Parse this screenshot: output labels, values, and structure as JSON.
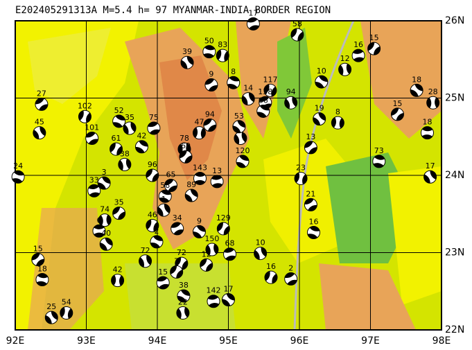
{
  "title": "E202405291313A M=5.4 h= 97 MYANMAR-INDIA BORDER REGION",
  "map": {
    "xlim": [
      92,
      98
    ],
    "ylim": [
      22,
      26
    ],
    "xticks": [
      {
        "value": 92,
        "label": "92E"
      },
      {
        "value": 93,
        "label": "93E"
      },
      {
        "value": 94,
        "label": "94E"
      },
      {
        "value": 95,
        "label": "95E"
      },
      {
        "value": 96,
        "label": "96E"
      },
      {
        "value": 97,
        "label": "97E"
      },
      {
        "value": 98,
        "label": "98E"
      }
    ],
    "yticks": [
      {
        "value": 22,
        "label": "22N"
      },
      {
        "value": 23,
        "label": "23N"
      },
      {
        "value": 24,
        "label": "24N"
      },
      {
        "value": 25,
        "label": "25N"
      },
      {
        "value": 26,
        "label": "26N"
      }
    ],
    "events": [
      {
        "lon": 92.37,
        "lat": 24.92,
        "depth": 27
      },
      {
        "lon": 92.04,
        "lat": 23.98,
        "depth": 24
      },
      {
        "lon": 92.34,
        "lat": 24.55,
        "depth": 45
      },
      {
        "lon": 92.98,
        "lat": 24.76,
        "depth": 102
      },
      {
        "lon": 93.08,
        "lat": 24.48,
        "depth": 101
      },
      {
        "lon": 93.46,
        "lat": 24.7,
        "depth": 52
      },
      {
        "lon": 93.61,
        "lat": 24.61,
        "depth": 35
      },
      {
        "lon": 93.42,
        "lat": 24.34,
        "depth": 61
      },
      {
        "lon": 93.95,
        "lat": 24.61,
        "depth": 75
      },
      {
        "lon": 93.78,
        "lat": 24.37,
        "depth": 42
      },
      {
        "lon": 93.54,
        "lat": 24.14,
        "depth": 38
      },
      {
        "lon": 93.93,
        "lat": 24.0,
        "depth": 96
      },
      {
        "lon": 93.11,
        "lat": 23.8,
        "depth": 33
      },
      {
        "lon": 93.25,
        "lat": 23.9,
        "depth": 3
      },
      {
        "lon": 93.26,
        "lat": 23.42,
        "depth": 74
      },
      {
        "lon": 93.46,
        "lat": 23.51,
        "depth": 35
      },
      {
        "lon": 93.18,
        "lat": 23.28,
        "depth": 6
      },
      {
        "lon": 93.28,
        "lat": 23.11,
        "depth": 40
      },
      {
        "lon": 93.44,
        "lat": 22.64,
        "depth": 42
      },
      {
        "lon": 92.32,
        "lat": 22.91,
        "depth": 15
      },
      {
        "lon": 92.38,
        "lat": 22.65,
        "depth": 18
      },
      {
        "lon": 92.51,
        "lat": 22.16,
        "depth": 25
      },
      {
        "lon": 92.72,
        "lat": 22.22,
        "depth": 54
      },
      {
        "lon": 94.19,
        "lat": 23.87,
        "depth": 65
      },
      {
        "lon": 94.11,
        "lat": 23.73,
        "depth": 58
      },
      {
        "lon": 94.09,
        "lat": 23.55,
        "depth": 1
      },
      {
        "lon": 93.93,
        "lat": 23.35,
        "depth": 46
      },
      {
        "lon": 94.28,
        "lat": 23.31,
        "depth": 34
      },
      {
        "lon": 93.99,
        "lat": 23.14,
        "depth": 2
      },
      {
        "lon": 93.83,
        "lat": 22.89,
        "depth": 72
      },
      {
        "lon": 94.34,
        "lat": 22.86,
        "depth": 72
      },
      {
        "lon": 94.08,
        "lat": 22.61,
        "depth": 15
      },
      {
        "lon": 94.37,
        "lat": 22.44,
        "depth": 38
      },
      {
        "lon": 94.36,
        "lat": 22.22,
        "depth": 22
      },
      {
        "lon": 94.27,
        "lat": 22.75,
        "depth": 7
      },
      {
        "lon": 94.79,
        "lat": 22.37,
        "depth": 142
      },
      {
        "lon": 95.0,
        "lat": 22.39,
        "depth": 17
      },
      {
        "lon": 94.38,
        "lat": 24.34,
        "depth": 78
      },
      {
        "lon": 94.4,
        "lat": 24.24,
        "depth": 69
      },
      {
        "lon": 94.6,
        "lat": 23.96,
        "depth": 143
      },
      {
        "lon": 94.48,
        "lat": 23.74,
        "depth": 89
      },
      {
        "lon": 94.59,
        "lat": 24.55,
        "depth": 47
      },
      {
        "lon": 94.74,
        "lat": 24.65,
        "depth": 94
      },
      {
        "lon": 94.73,
        "lat": 25.6,
        "depth": 50
      },
      {
        "lon": 94.42,
        "lat": 25.46,
        "depth": 39
      },
      {
        "lon": 94.92,
        "lat": 25.55,
        "depth": 83
      },
      {
        "lon": 94.76,
        "lat": 25.17,
        "depth": 9
      },
      {
        "lon": 95.07,
        "lat": 25.2,
        "depth": 8
      },
      {
        "lon": 95.28,
        "lat": 24.99,
        "depth": 14
      },
      {
        "lon": 95.59,
        "lat": 25.1,
        "depth": 117
      },
      {
        "lon": 95.52,
        "lat": 24.94,
        "depth": 138
      },
      {
        "lon": 95.49,
        "lat": 24.83,
        "depth": 66
      },
      {
        "lon": 95.88,
        "lat": 24.94,
        "depth": 94
      },
      {
        "lon": 95.97,
        "lat": 25.82,
        "depth": 58
      },
      {
        "lon": 95.35,
        "lat": 25.96,
        "depth": 17
      },
      {
        "lon": 96.31,
        "lat": 25.21,
        "depth": 10
      },
      {
        "lon": 96.64,
        "lat": 25.37,
        "depth": 12
      },
      {
        "lon": 97.05,
        "lat": 25.64,
        "depth": 15
      },
      {
        "lon": 96.83,
        "lat": 25.55,
        "depth": 16
      },
      {
        "lon": 97.65,
        "lat": 25.1,
        "depth": 18
      },
      {
        "lon": 97.88,
        "lat": 24.94,
        "depth": 28
      },
      {
        "lon": 97.38,
        "lat": 24.79,
        "depth": 15
      },
      {
        "lon": 97.8,
        "lat": 24.55,
        "depth": 18
      },
      {
        "lon": 96.28,
        "lat": 24.73,
        "depth": 19
      },
      {
        "lon": 96.54,
        "lat": 24.68,
        "depth": 8
      },
      {
        "lon": 96.16,
        "lat": 24.36,
        "depth": 13
      },
      {
        "lon": 97.12,
        "lat": 24.18,
        "depth": 73
      },
      {
        "lon": 97.84,
        "lat": 23.98,
        "depth": 17
      },
      {
        "lon": 96.02,
        "lat": 23.96,
        "depth": 23
      },
      {
        "lon": 96.16,
        "lat": 23.62,
        "depth": 21
      },
      {
        "lon": 96.2,
        "lat": 23.26,
        "depth": 16
      },
      {
        "lon": 95.45,
        "lat": 22.99,
        "depth": 10
      },
      {
        "lon": 95.6,
        "lat": 22.68,
        "depth": 16
      },
      {
        "lon": 95.88,
        "lat": 22.66,
        "depth": 2
      },
      {
        "lon": 95.2,
        "lat": 24.18,
        "depth": 120
      },
      {
        "lon": 95.17,
        "lat": 24.48,
        "depth": 25
      },
      {
        "lon": 94.93,
        "lat": 23.31,
        "depth": 129
      },
      {
        "lon": 95.02,
        "lat": 22.98,
        "depth": 68
      },
      {
        "lon": 94.59,
        "lat": 23.27,
        "depth": 9
      },
      {
        "lon": 94.77,
        "lat": 23.04,
        "depth": 150
      },
      {
        "lon": 94.69,
        "lat": 22.84,
        "depth": 12
      },
      {
        "lon": 94.84,
        "lat": 23.92,
        "depth": 13
      },
      {
        "lon": 95.15,
        "lat": 24.63,
        "depth": 53
      }
    ]
  }
}
